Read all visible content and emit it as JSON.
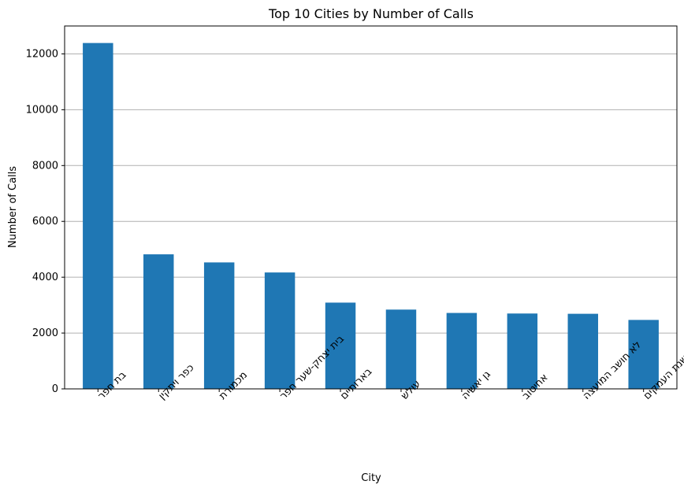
{
  "chart_data": {
    "type": "bar",
    "title": "Top 10 Cities by Number of Calls",
    "xlabel": "City",
    "ylabel": "Number of Calls",
    "categories": [
      "בת חפר",
      "כפר ויתקין",
      "מכמורת",
      "בית יצחק-שער חפר",
      "בארותיים",
      "עולש",
      "גן יאשיה",
      "אחיטוב",
      "לא חושב המועצה",
      "שושנת העמקים"
    ],
    "values": [
      12390,
      4820,
      4530,
      4170,
      3090,
      2840,
      2720,
      2700,
      2690,
      2470
    ],
    "ylim": [
      0,
      13000
    ],
    "yticks": [
      0,
      2000,
      4000,
      6000,
      8000,
      10000,
      12000
    ],
    "grid": "y",
    "bar_color": "#1f77b4"
  }
}
